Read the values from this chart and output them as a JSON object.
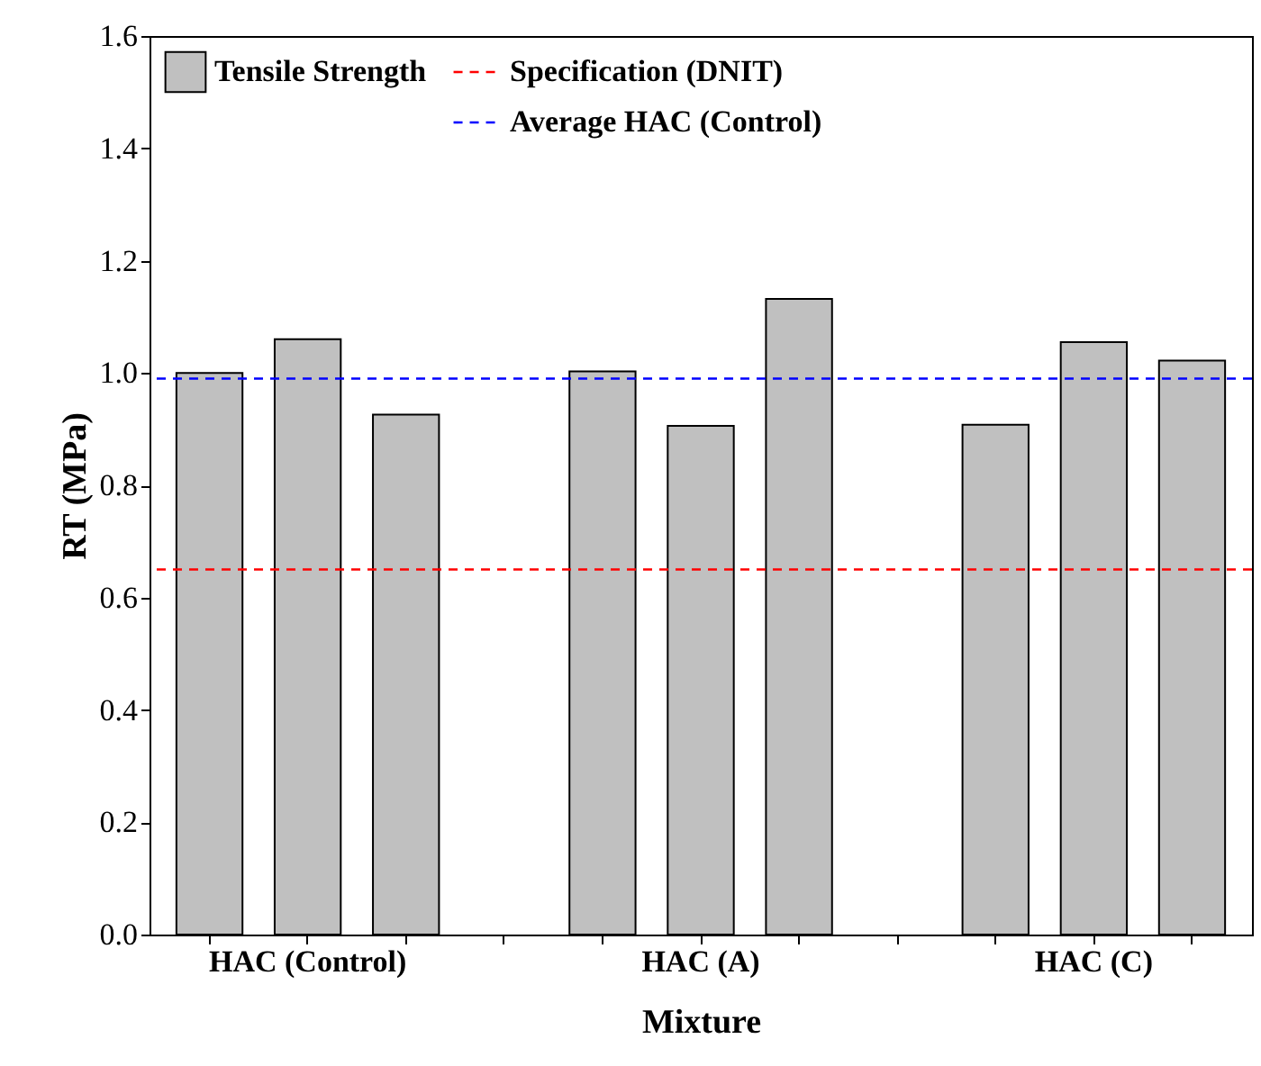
{
  "chart_data": {
    "type": "bar",
    "xlabel": "Mixture",
    "ylabel": "RT (MPa)",
    "categories": [
      null,
      "HAC (Control)",
      null,
      null,
      null,
      "HAC (A)",
      null,
      null,
      null,
      "HAC (C)",
      null
    ],
    "series": [
      {
        "name": "Tensile Strength",
        "color": "#c0c0c0",
        "values": [
          1.0,
          1.06,
          0.926,
          null,
          1.003,
          0.906,
          1.132,
          null,
          0.908,
          1.055,
          1.022
        ]
      }
    ],
    "ylim": [
      0,
      1.6
    ],
    "yticks": [
      {
        "value": 0,
        "label": "0.0"
      },
      0.2,
      0.4,
      0.6,
      0.8,
      {
        "value": 1,
        "label": "1.0"
      },
      1.2,
      1.4,
      1.6
    ],
    "ref_lines": [
      {
        "axis": "y",
        "value": 0.65,
        "label": "Specification (DNIT)",
        "color": "#ff0000",
        "line_style": "dashed"
      },
      {
        "axis": "y",
        "value": 0.99,
        "label": "Average HAC (Control)",
        "color": "#0000ff",
        "line_style": "dashed"
      }
    ],
    "legend": "top left",
    "grid": false
  }
}
